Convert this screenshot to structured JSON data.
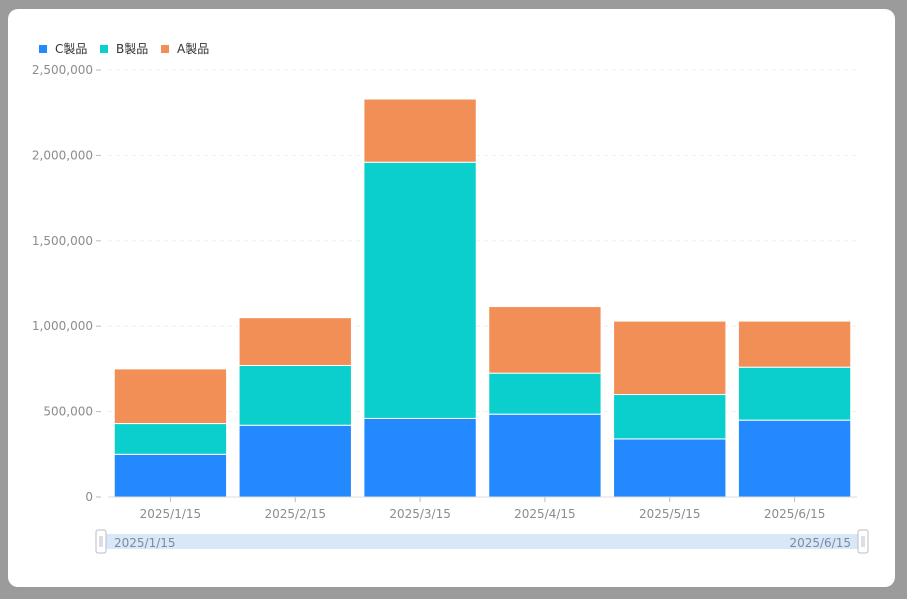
{
  "chart_data": {
    "type": "bar",
    "stacked": true,
    "categories": [
      "2025/1/15",
      "2025/2/15",
      "2025/3/15",
      "2025/4/15",
      "2025/5/15",
      "2025/6/15"
    ],
    "series": [
      {
        "name": "C製品",
        "color": "#2488ff",
        "values": [
          250000,
          420000,
          460000,
          485000,
          340000,
          450000
        ]
      },
      {
        "name": "B製品",
        "color": "#0bcfcd",
        "values": [
          180000,
          350000,
          1500000,
          240000,
          260000,
          310000
        ]
      },
      {
        "name": "A製品",
        "color": "#f18f57",
        "values": [
          320000,
          280000,
          370000,
          390000,
          430000,
          270000
        ]
      }
    ],
    "y_ticks": [
      "0",
      "500,000",
      "1,000,000",
      "1,500,000",
      "2,000,000",
      "2,500,000"
    ],
    "ylim": [
      0,
      2500000
    ],
    "legend_position": "top-left",
    "grid": true
  },
  "slider": {
    "start_label": "2025/1/15",
    "end_label": "2025/6/15"
  }
}
